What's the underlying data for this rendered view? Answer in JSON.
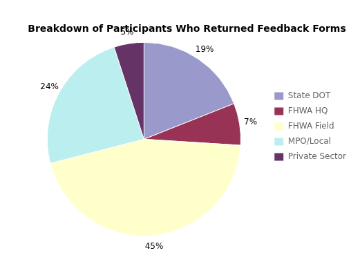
{
  "chart_data": {
    "type": "pie",
    "title": "Breakdown of Participants Who Returned Feedback Forms",
    "categories": [
      "State DOT",
      "FHWA HQ",
      "FHWA Field",
      "MPO/Local",
      "Private Sector"
    ],
    "values": [
      19,
      7,
      45,
      24,
      5
    ],
    "value_labels": [
      "19%",
      "7%",
      "45%",
      "24%",
      "5%"
    ],
    "colors": [
      "#9999cc",
      "#993355",
      "#ffffcc",
      "#bbeeee",
      "#663366"
    ],
    "data_labels": true,
    "legend": "right"
  }
}
